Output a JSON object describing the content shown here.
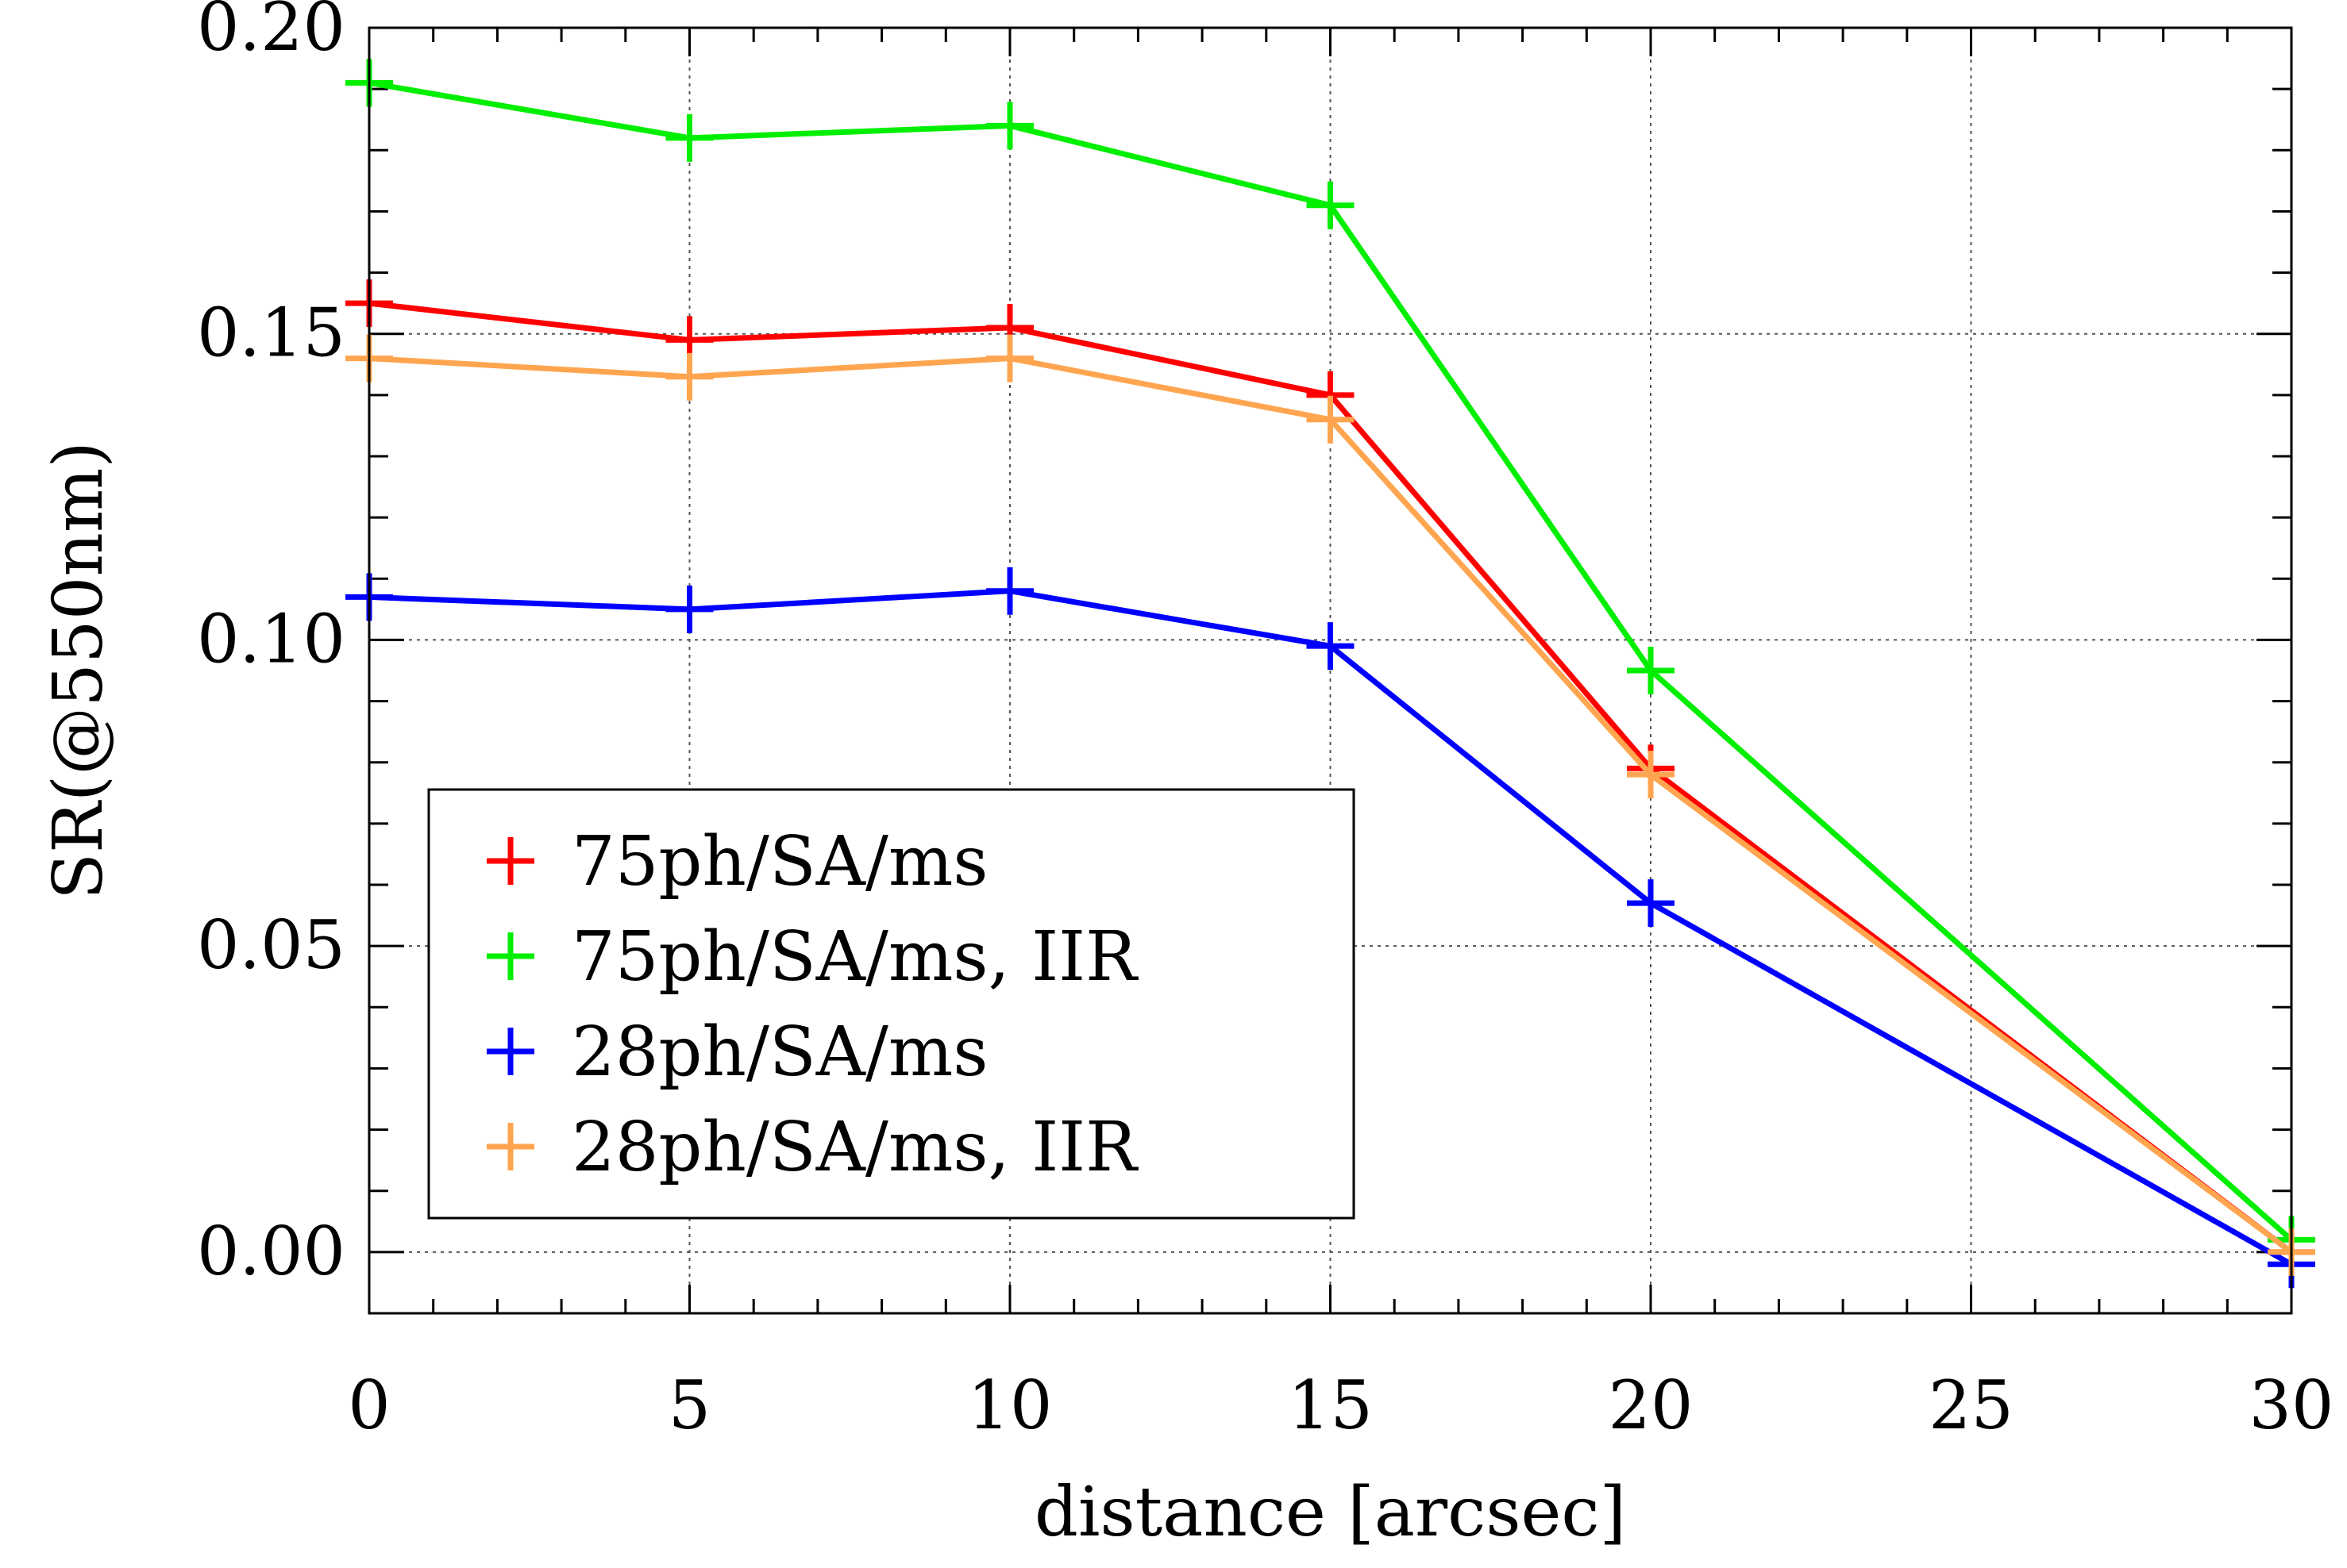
{
  "chart_data": {
    "type": "line",
    "title": "",
    "xlabel": "distance [arcsec]",
    "ylabel": "SR(@550nm)",
    "xlim": [
      0,
      30
    ],
    "ylim": [
      -0.01,
      0.2
    ],
    "x_ticks": [
      0,
      5,
      10,
      15,
      20,
      25,
      30
    ],
    "x_tick_labels": [
      "0",
      "5",
      "10",
      "15",
      "20",
      "25",
      "30"
    ],
    "y_ticks": [
      0.0,
      0.05,
      0.1,
      0.15,
      0.2
    ],
    "y_tick_labels": [
      "0.00",
      "0.05",
      "0.10",
      "0.15",
      "0.20"
    ],
    "grid": true,
    "marker": "plus",
    "legend_position": "lower-left",
    "series": [
      {
        "name": "75ph/SA/ms",
        "color": "#ff0000",
        "x": [
          0,
          5,
          10,
          15,
          20,
          30
        ],
        "y": [
          0.155,
          0.149,
          0.151,
          0.14,
          0.079,
          0.0
        ]
      },
      {
        "name": "75ph/SA/ms, IIR",
        "color": "#00ee00",
        "x": [
          0,
          5,
          10,
          15,
          20,
          30
        ],
        "y": [
          0.191,
          0.182,
          0.184,
          0.171,
          0.095,
          0.002
        ]
      },
      {
        "name": "28ph/SA/ms",
        "color": "#0000ff",
        "x": [
          0,
          5,
          10,
          15,
          20,
          30
        ],
        "y": [
          0.107,
          0.105,
          0.108,
          0.099,
          0.057,
          -0.002
        ]
      },
      {
        "name": "28ph/SA/ms, IIR",
        "color": "#ffa54f",
        "x": [
          0,
          5,
          10,
          15,
          20,
          30
        ],
        "y": [
          0.146,
          0.143,
          0.146,
          0.136,
          0.078,
          0.0
        ]
      }
    ]
  }
}
